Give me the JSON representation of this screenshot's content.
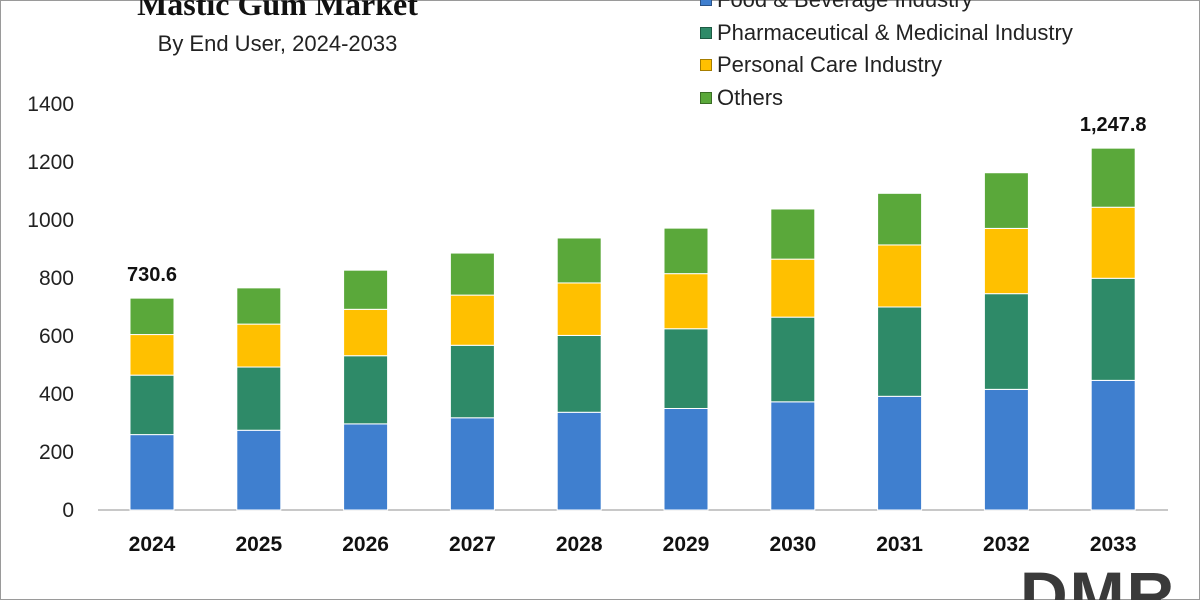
{
  "chart_data": {
    "type": "bar",
    "stacked": true,
    "title": "Mastic Gum Market",
    "subtitle": "By End User, 2024-2033",
    "categories": [
      "2024",
      "2025",
      "2026",
      "2027",
      "2028",
      "2029",
      "2030",
      "2031",
      "2032",
      "2033"
    ],
    "series": [
      {
        "name": "Food & Beverage Industry",
        "color": "#3f7fcf",
        "values": [
          260,
          275,
          297,
          318,
          337,
          350,
          373,
          392,
          416,
          447
        ]
      },
      {
        "name": "Pharmaceutical & Medicinal Industry",
        "color": "#2e8a68",
        "values": [
          205,
          218,
          235,
          250,
          265,
          275,
          292,
          308,
          330,
          352
        ]
      },
      {
        "name": "Personal Care Industry",
        "color": "#ffc000",
        "values": [
          140,
          148,
          160,
          173,
          181,
          190,
          200,
          214,
          225,
          245
        ]
      },
      {
        "name": "Others",
        "color": "#5aa83a",
        "values": [
          125.6,
          125,
          135,
          145,
          155,
          157,
          173,
          178,
          192,
          203.8
        ]
      }
    ],
    "data_labels": [
      {
        "category": "2024",
        "text": "730.6"
      },
      {
        "category": "2033",
        "text": "1,247.8"
      }
    ],
    "ylim": [
      0,
      1400
    ],
    "yticks": [
      "0",
      "200",
      "400",
      "600",
      "800",
      "1000",
      "1200",
      "1400"
    ],
    "xlabel": "",
    "ylabel": "",
    "grid": false,
    "legend_position": "top-right"
  },
  "logo": {
    "text": "DMR"
  }
}
